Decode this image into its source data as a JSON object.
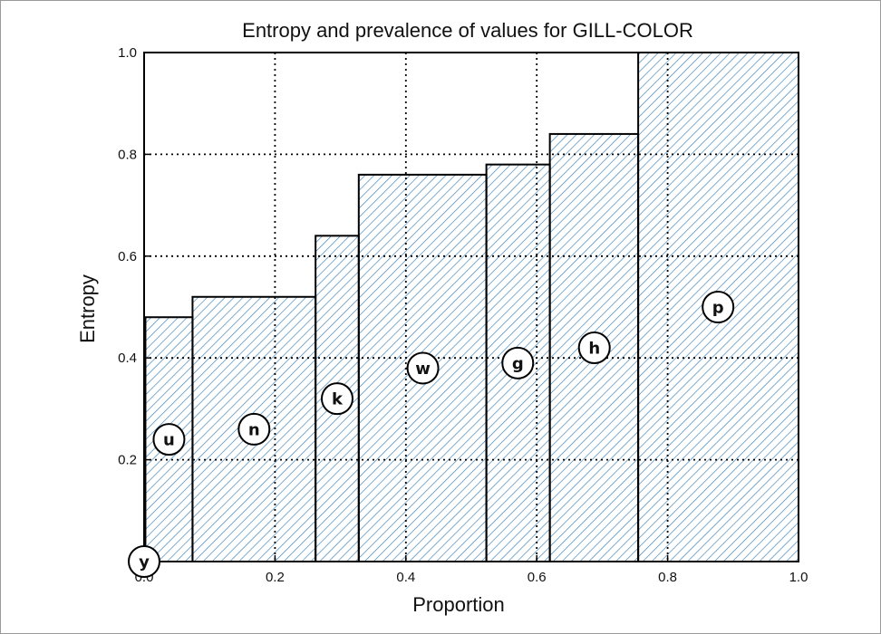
{
  "chart_data": {
    "type": "bar",
    "title": "Entropy and prevalence of values for GILL-COLOR",
    "xlabel": "Proportion",
    "ylabel": "Entropy",
    "xlim": [
      0.0,
      1.0
    ],
    "ylim": [
      0.0,
      1.0
    ],
    "xticks": [
      "0.0",
      "0.2",
      "0.4",
      "0.6",
      "0.8",
      "1.0"
    ],
    "yticks": [
      "0.2",
      "0.4",
      "0.6",
      "0.8",
      "1.0"
    ],
    "grid": true,
    "bar_style": "hatched",
    "colors": {
      "hatch": "#3b7fb5",
      "outline": "#000000",
      "grid": "#000000"
    },
    "bars": [
      {
        "label": "y",
        "x0": 0.0,
        "x1": 0.002,
        "entropy": 0.0
      },
      {
        "label": "u",
        "x0": 0.002,
        "x1": 0.074,
        "entropy": 0.48
      },
      {
        "label": "n",
        "x0": 0.074,
        "x1": 0.262,
        "entropy": 0.52
      },
      {
        "label": "k",
        "x0": 0.262,
        "x1": 0.328,
        "entropy": 0.64
      },
      {
        "label": "w",
        "x0": 0.328,
        "x1": 0.523,
        "entropy": 0.76
      },
      {
        "label": "g",
        "x0": 0.523,
        "x1": 0.62,
        "entropy": 0.78
      },
      {
        "label": "h",
        "x0": 0.62,
        "x1": 0.755,
        "entropy": 0.84
      },
      {
        "label": "p",
        "x0": 0.755,
        "x1": 1.0,
        "entropy": 1.0
      }
    ],
    "label_points": [
      {
        "label": "y",
        "x": 0.0,
        "y": 0.0
      },
      {
        "label": "u",
        "x": 0.038,
        "y": 0.24
      },
      {
        "label": "n",
        "x": 0.168,
        "y": 0.26
      },
      {
        "label": "k",
        "x": 0.295,
        "y": 0.32
      },
      {
        "label": "w",
        "x": 0.426,
        "y": 0.38
      },
      {
        "label": "g",
        "x": 0.571,
        "y": 0.39
      },
      {
        "label": "h",
        "x": 0.688,
        "y": 0.42
      },
      {
        "label": "p",
        "x": 0.877,
        "y": 0.5
      }
    ]
  }
}
